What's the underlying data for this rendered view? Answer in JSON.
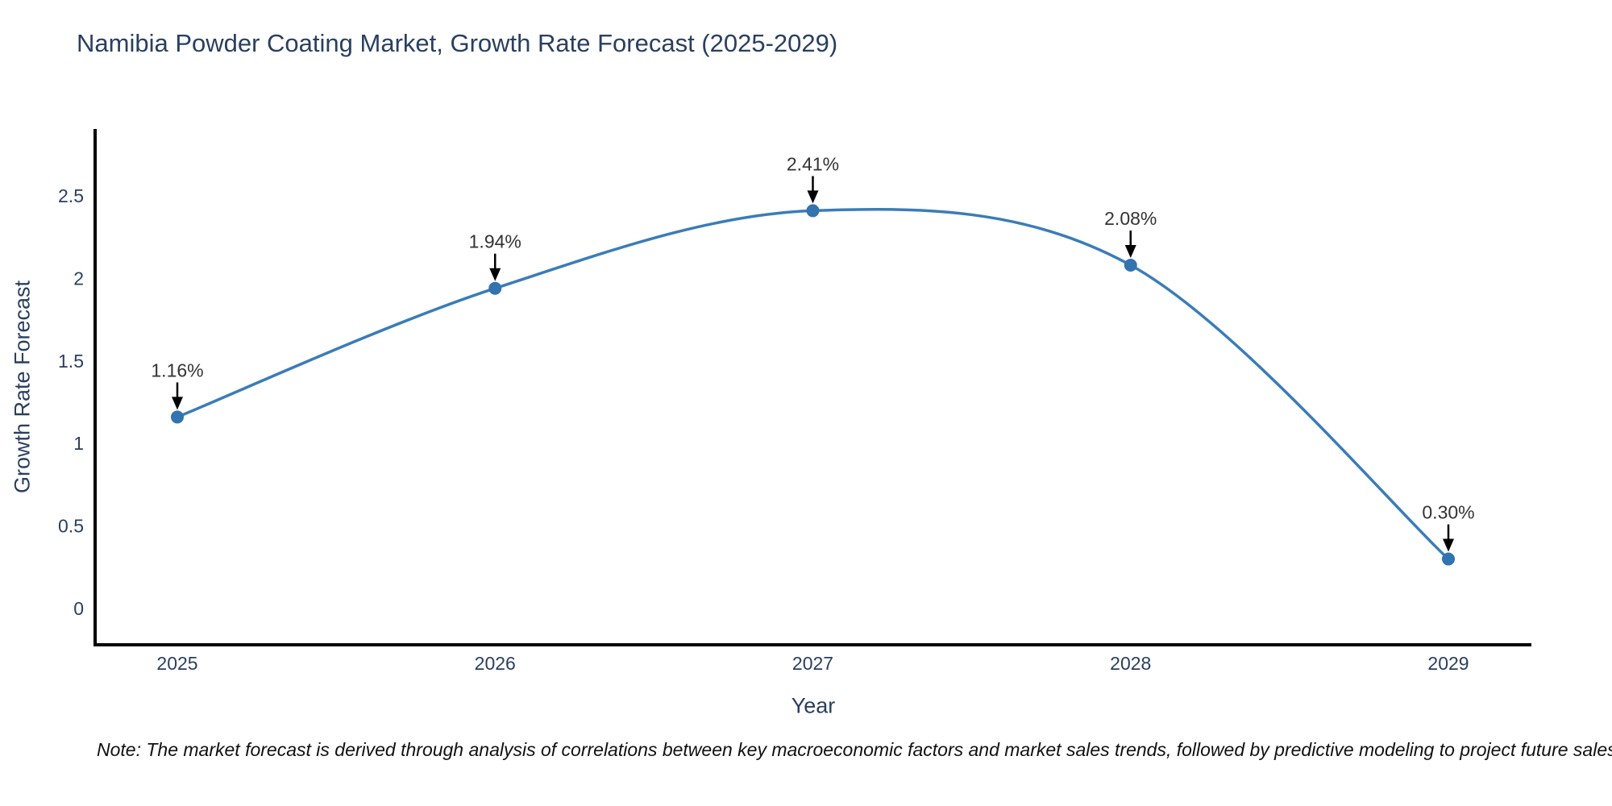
{
  "page": {
    "background": "#ffffff"
  },
  "chart_data": {
    "type": "line",
    "title": "Namibia Powder Coating Market, Growth Rate Forecast (2025-2029)",
    "xlabel": "Year",
    "ylabel": "Growth Rate Forecast",
    "x": [
      2025,
      2026,
      2027,
      2028,
      2029
    ],
    "values": [
      1.16,
      1.94,
      2.41,
      2.08,
      0.3
    ],
    "point_labels": [
      "1.16%",
      "1.94%",
      "2.41%",
      "2.08%",
      "0.30%"
    ],
    "xtick_labels": [
      "2025",
      "2026",
      "2027",
      "2028",
      "2029"
    ],
    "yticks": [
      0,
      0.5,
      1,
      1.5,
      2,
      2.5
    ],
    "ytick_labels": [
      "0",
      "0.5",
      "1",
      "1.5",
      "2",
      "2.5"
    ],
    "ylim": [
      -0.22,
      2.9
    ],
    "grid": false,
    "legend": "none",
    "curve": "smooth",
    "line_color": "#3a7cb8",
    "marker_color": "#3273b0",
    "axis_color": "#000000",
    "arrow_color": "#000000",
    "title_color": "#2a3f5f",
    "tick_color": "#2a3f5f",
    "annotation_color": "#333333"
  },
  "note": {
    "text": "Note: The market forecast is derived through analysis of correlations between key macroeconomic factors and market sales trends, followed by predictive modeling to project future sales"
  }
}
